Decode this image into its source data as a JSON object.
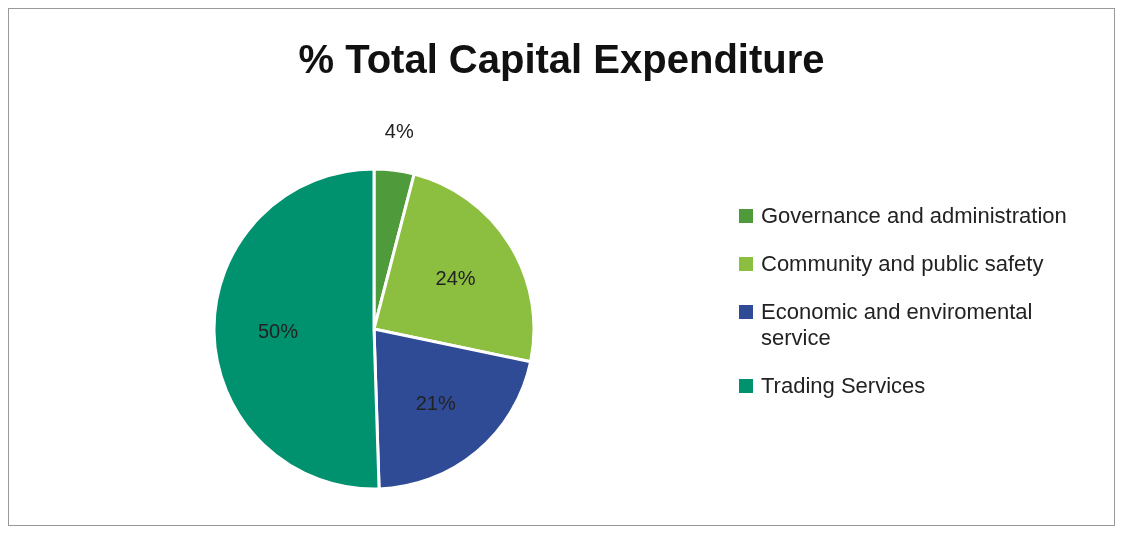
{
  "chart_data": {
    "type": "pie",
    "title": "% Total Capital Expenditure",
    "categories": [
      "Governance and administration",
      "Community and public safety",
      "Economic and enviromental service",
      "Trading Services"
    ],
    "values": [
      4,
      24,
      21,
      50
    ],
    "value_labels": [
      "4%",
      "24%",
      "21%",
      "50%"
    ],
    "colors": [
      "#4f9a3a",
      "#8cbf3f",
      "#2f4b96",
      "#00916f"
    ],
    "legend": "right"
  }
}
